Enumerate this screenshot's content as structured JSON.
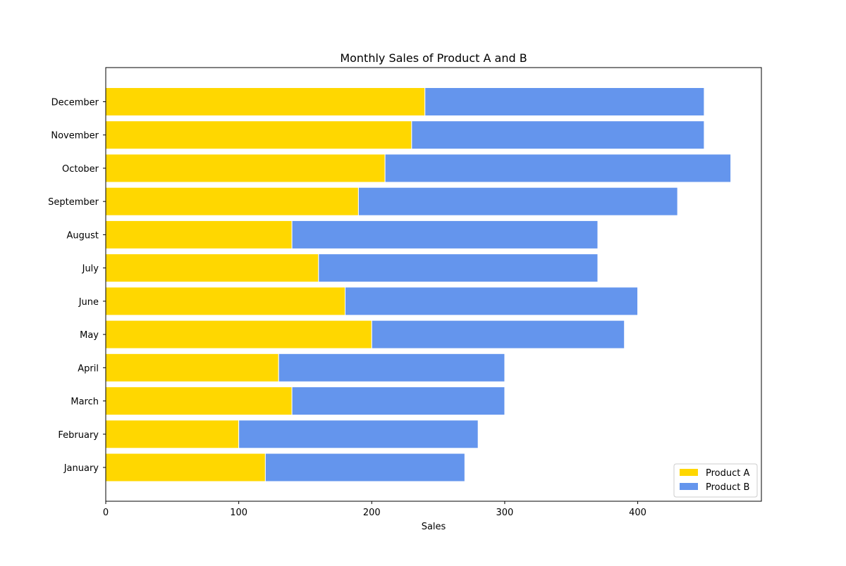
{
  "chart_data": {
    "type": "bar",
    "orientation": "horizontal",
    "stacked": true,
    "title": "Monthly Sales of Product A and B",
    "xlabel": "Sales",
    "ylabel": "",
    "categories": [
      "January",
      "February",
      "March",
      "April",
      "May",
      "June",
      "July",
      "August",
      "September",
      "October",
      "November",
      "December"
    ],
    "series": [
      {
        "name": "Product A",
        "color": "#FFD700",
        "values": [
          120,
          100,
          140,
          130,
          200,
          180,
          160,
          140,
          190,
          210,
          230,
          240
        ]
      },
      {
        "name": "Product B",
        "color": "#6495ED",
        "values": [
          150,
          180,
          160,
          170,
          190,
          220,
          210,
          230,
          240,
          260,
          220,
          210
        ]
      }
    ],
    "xlim": [
      0,
      493
    ],
    "xticks": [
      0,
      100,
      200,
      300,
      400
    ],
    "grid": false,
    "legend_position": "bottom-right"
  }
}
